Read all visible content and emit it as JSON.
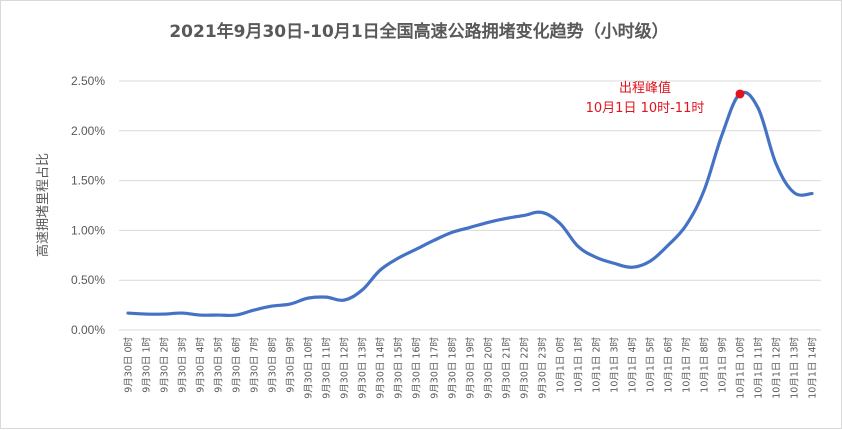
{
  "chart_data": {
    "type": "line",
    "title": "2021年9月30日-10月1日全国高速公路拥堵变化趋势（小时级）",
    "ylabel": "高速拥堵里程占比",
    "xlabel": "",
    "ylim": [
      0,
      2.5
    ],
    "yticks": [
      "0.00%",
      "0.50%",
      "1.00%",
      "1.50%",
      "2.00%",
      "2.50%"
    ],
    "grid": true,
    "legend": "none",
    "categories": [
      "9月30日 0时",
      "9月30日 1时",
      "9月30日 2时",
      "9月30日 3时",
      "9月30日 4时",
      "9月30日 5时",
      "9月30日 6时",
      "9月30日 7时",
      "9月30日 8时",
      "9月30日 9时",
      "9月30日 10时",
      "9月30日 11时",
      "9月30日 12时",
      "9月30日 13时",
      "9月30日 14时",
      "9月30日 15时",
      "9月30日 16时",
      "9月30日 17时",
      "9月30日 18时",
      "9月30日 19时",
      "9月30日 20时",
      "9月30日 21时",
      "9月30日 22时",
      "9月30日 23时",
      "10月1日 0时",
      "10月1日 1时",
      "10月1日 2时",
      "10月1日 3时",
      "10月1日 4时",
      "10月1日 5时",
      "10月1日 6时",
      "10月1日 7时",
      "10月1日 8时",
      "10月1日 9时",
      "10月1日 10时",
      "10月1日 11时",
      "10月1日 12时",
      "10月1日 13时",
      "10月1日 14时"
    ],
    "series": [
      {
        "values": [
          0.17,
          0.16,
          0.16,
          0.17,
          0.15,
          0.15,
          0.15,
          0.2,
          0.24,
          0.26,
          0.32,
          0.33,
          0.3,
          0.4,
          0.6,
          0.72,
          0.81,
          0.9,
          0.98,
          1.03,
          1.08,
          1.12,
          1.15,
          1.18,
          1.07,
          0.84,
          0.73,
          0.67,
          0.63,
          0.69,
          0.85,
          1.05,
          1.4,
          1.96,
          2.37,
          2.23,
          1.67,
          1.38,
          1.37
        ],
        "color": "#4472c4"
      }
    ],
    "annotation": {
      "line1": "出程峰值",
      "line2": "10月1日 10时-11时",
      "index": 34,
      "color": "#e0141e"
    }
  }
}
